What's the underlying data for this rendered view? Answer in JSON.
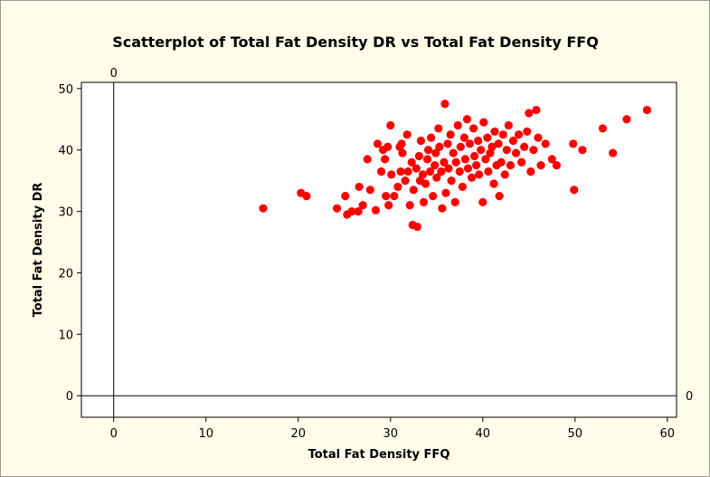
{
  "chart_data": {
    "type": "scatter",
    "title": "Scatterplot of Total Fat Density DR vs Total Fat Density FFQ",
    "xlabel": "Total Fat Density FFQ",
    "ylabel": "Total Fat Density DR",
    "xlim": [
      -3.5,
      61
    ],
    "ylim": [
      -3.5,
      51
    ],
    "xticks": [
      0,
      10,
      20,
      30,
      40,
      50,
      60
    ],
    "yticks": [
      0,
      10,
      20,
      30,
      40,
      50
    ],
    "reference_lines": [
      {
        "axis": "x",
        "value": 0,
        "label": "0"
      },
      {
        "axis": "y",
        "value": 0,
        "label": "0"
      }
    ],
    "grid": false,
    "marker_color": "#ff0000",
    "series": [
      {
        "points": [
          [
            16.2,
            30.5
          ],
          [
            20.3,
            33.0
          ],
          [
            20.9,
            32.5
          ],
          [
            24.2,
            30.5
          ],
          [
            25.1,
            32.5
          ],
          [
            25.3,
            29.5
          ],
          [
            25.8,
            30.0
          ],
          [
            26.5,
            30.0
          ],
          [
            26.6,
            34.0
          ],
          [
            27.0,
            31.0
          ],
          [
            27.5,
            38.5
          ],
          [
            27.8,
            33.5
          ],
          [
            28.4,
            30.2
          ],
          [
            28.6,
            41.0
          ],
          [
            29.0,
            36.5
          ],
          [
            29.2,
            40.0
          ],
          [
            29.4,
            38.5
          ],
          [
            29.5,
            32.5
          ],
          [
            29.7,
            40.5
          ],
          [
            29.8,
            31.0
          ],
          [
            30.0,
            44.0
          ],
          [
            30.1,
            36.0
          ],
          [
            30.4,
            32.5
          ],
          [
            30.8,
            34.0
          ],
          [
            31.0,
            40.5
          ],
          [
            31.1,
            36.5
          ],
          [
            31.2,
            41.0
          ],
          [
            31.3,
            39.5
          ],
          [
            31.6,
            35.0
          ],
          [
            31.8,
            42.5
          ],
          [
            31.9,
            36.5
          ],
          [
            32.1,
            31.0
          ],
          [
            32.3,
            38.0
          ],
          [
            32.4,
            27.8
          ],
          [
            32.5,
            33.5
          ],
          [
            32.8,
            37.0
          ],
          [
            32.9,
            27.5
          ],
          [
            33.1,
            39.0
          ],
          [
            33.2,
            35.0
          ],
          [
            33.3,
            41.5
          ],
          [
            33.5,
            36.0
          ],
          [
            33.6,
            31.5
          ],
          [
            33.8,
            34.5
          ],
          [
            34.0,
            38.5
          ],
          [
            34.1,
            40.0
          ],
          [
            34.3,
            36.5
          ],
          [
            34.4,
            42.0
          ],
          [
            34.6,
            32.5
          ],
          [
            34.8,
            37.5
          ],
          [
            34.9,
            39.5
          ],
          [
            35.0,
            35.5
          ],
          [
            35.2,
            43.5
          ],
          [
            35.3,
            40.5
          ],
          [
            35.5,
            36.5
          ],
          [
            35.6,
            30.5
          ],
          [
            35.8,
            38.0
          ],
          [
            35.9,
            47.5
          ],
          [
            36.0,
            33.0
          ],
          [
            36.2,
            41.0
          ],
          [
            36.3,
            37.0
          ],
          [
            36.5,
            42.5
          ],
          [
            36.6,
            35.0
          ],
          [
            36.8,
            39.5
          ],
          [
            37.0,
            31.5
          ],
          [
            37.1,
            38.0
          ],
          [
            37.3,
            44.0
          ],
          [
            37.5,
            36.5
          ],
          [
            37.6,
            40.5
          ],
          [
            37.8,
            34.0
          ],
          [
            38.0,
            42.0
          ],
          [
            38.1,
            38.5
          ],
          [
            38.3,
            45.0
          ],
          [
            38.4,
            37.0
          ],
          [
            38.6,
            41.0
          ],
          [
            38.8,
            35.5
          ],
          [
            39.0,
            43.5
          ],
          [
            39.1,
            39.0
          ],
          [
            39.3,
            37.5
          ],
          [
            39.5,
            41.5
          ],
          [
            39.6,
            36.0
          ],
          [
            39.8,
            40.0
          ],
          [
            40.0,
            31.5
          ],
          [
            40.1,
            44.5
          ],
          [
            40.3,
            38.5
          ],
          [
            40.5,
            42.0
          ],
          [
            40.6,
            36.5
          ],
          [
            40.8,
            39.5
          ],
          [
            41.0,
            40.5
          ],
          [
            41.2,
            34.5
          ],
          [
            41.3,
            43.0
          ],
          [
            41.5,
            37.5
          ],
          [
            41.7,
            41.0
          ],
          [
            41.8,
            32.5
          ],
          [
            42.0,
            38.0
          ],
          [
            42.2,
            42.5
          ],
          [
            42.4,
            36.0
          ],
          [
            42.6,
            40.0
          ],
          [
            42.8,
            44.0
          ],
          [
            43.0,
            37.5
          ],
          [
            43.3,
            41.5
          ],
          [
            43.6,
            39.5
          ],
          [
            43.9,
            42.5
          ],
          [
            44.2,
            38.0
          ],
          [
            44.5,
            40.5
          ],
          [
            44.8,
            43.0
          ],
          [
            45.0,
            46.0
          ],
          [
            45.2,
            36.5
          ],
          [
            45.5,
            40.0
          ],
          [
            45.8,
            46.5
          ],
          [
            46.0,
            42.0
          ],
          [
            46.3,
            37.5
          ],
          [
            46.8,
            41.0
          ],
          [
            47.5,
            38.5
          ],
          [
            48.0,
            37.5
          ],
          [
            49.8,
            41.0
          ],
          [
            49.9,
            33.5
          ],
          [
            50.8,
            40.0
          ],
          [
            53.0,
            43.5
          ],
          [
            54.1,
            39.5
          ],
          [
            55.6,
            45.0
          ],
          [
            57.8,
            46.5
          ]
        ]
      }
    ]
  }
}
